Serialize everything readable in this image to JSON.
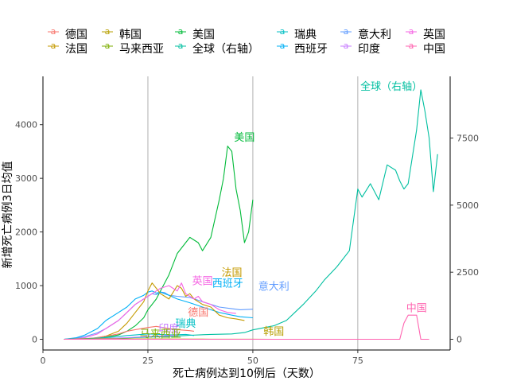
{
  "chart_data": {
    "type": "line",
    "xlabel": "死亡病例达到10例后（天数）",
    "ylabel": "新增死亡病例3日均值",
    "xlim": [
      0,
      97
    ],
    "ylim": [
      -200,
      4900
    ],
    "y2lim": [
      -400,
      9800
    ],
    "x_ticks": [
      0,
      25,
      50,
      75
    ],
    "y_ticks": [
      0,
      1000,
      2000,
      3000,
      4000
    ],
    "y2_ticks": [
      0,
      2500,
      5000,
      7500
    ],
    "vgrid": [
      25,
      50,
      75
    ],
    "legend_position": "top",
    "legend_glyph": "a",
    "legend": [
      {
        "name": "德国",
        "color": "#F8766D"
      },
      {
        "name": "法国",
        "color": "#C49A00"
      },
      {
        "name": "韩国",
        "color": "#B79F00"
      },
      {
        "name": "马来西亚",
        "color": "#7CAE00"
      },
      {
        "name": "美国",
        "color": "#00BA38"
      },
      {
        "name": "全球（右轴）",
        "color": "#00BFA0"
      },
      {
        "name": "瑞典",
        "color": "#00BFC4"
      },
      {
        "name": "西班牙",
        "color": "#00B0F6"
      },
      {
        "name": "意大利",
        "color": "#619CFF"
      },
      {
        "name": "印度",
        "color": "#C77CFF"
      },
      {
        "name": "英国",
        "color": "#F564E3"
      },
      {
        "name": "中国",
        "color": "#FF64B0"
      }
    ],
    "series": [
      {
        "name": "全球（右轴）",
        "color": "#00BFA0",
        "axis": "right",
        "label": "全球（右轴）",
        "x": [
          5,
          10,
          15,
          20,
          25,
          30,
          35,
          40,
          45,
          48,
          50,
          55,
          58,
          60,
          62,
          65,
          67,
          70,
          73,
          75,
          76,
          78,
          80,
          82,
          84,
          85,
          86,
          87,
          88,
          89,
          90,
          91,
          92,
          93,
          94
        ],
        "y": [
          0,
          10,
          30,
          50,
          80,
          100,
          150,
          180,
          200,
          250,
          350,
          500,
          700,
          1000,
          1300,
          1800,
          2200,
          2700,
          3300,
          5600,
          5300,
          5800,
          5200,
          6500,
          6300,
          5900,
          5600,
          5800,
          6800,
          7800,
          9300,
          8500,
          7500,
          5500,
          6900
        ]
      },
      {
        "name": "美国",
        "color": "#00BA38",
        "axis": "left",
        "label": "美国",
        "x": [
          5,
          8,
          10,
          13,
          15,
          18,
          20,
          22,
          24,
          25,
          27,
          28,
          30,
          32,
          35,
          37,
          38,
          40,
          42,
          43,
          44,
          45,
          46,
          47,
          48,
          49,
          50
        ],
        "y": [
          0,
          5,
          10,
          20,
          40,
          80,
          150,
          250,
          400,
          550,
          750,
          900,
          1200,
          1600,
          1900,
          1800,
          1650,
          1900,
          2600,
          3000,
          3600,
          3500,
          2800,
          2400,
          1800,
          2000,
          2600
        ]
      },
      {
        "name": "意大利",
        "color": "#619CFF",
        "axis": "left",
        "label": "意大利",
        "x": [
          5,
          8,
          10,
          13,
          15,
          18,
          20,
          22,
          24,
          25,
          26,
          27,
          28,
          29,
          30,
          32,
          35,
          38,
          40,
          42,
          45,
          47,
          50
        ],
        "y": [
          0,
          20,
          50,
          120,
          200,
          350,
          500,
          650,
          750,
          800,
          850,
          830,
          880,
          870,
          820,
          800,
          780,
          700,
          650,
          600,
          570,
          550,
          560
        ]
      },
      {
        "name": "西班牙",
        "color": "#00B0F6",
        "axis": "left",
        "label": "西班牙",
        "x": [
          5,
          8,
          10,
          13,
          15,
          18,
          20,
          22,
          24,
          25,
          26,
          27,
          28,
          30,
          32,
          35,
          38,
          40,
          42,
          45,
          47,
          50
        ],
        "y": [
          0,
          30,
          80,
          200,
          350,
          500,
          600,
          750,
          820,
          880,
          900,
          860,
          880,
          820,
          750,
          680,
          600,
          550,
          500,
          450,
          420,
          400
        ]
      },
      {
        "name": "法国",
        "color": "#C49A00",
        "axis": "left",
        "label": "法国",
        "x": [
          8,
          12,
          15,
          18,
          20,
          22,
          24,
          25,
          26,
          27,
          28,
          29,
          30,
          32,
          33,
          34,
          35,
          36,
          37,
          38,
          40,
          42,
          44,
          46,
          48
        ],
        "y": [
          0,
          20,
          60,
          150,
          300,
          500,
          700,
          900,
          1050,
          950,
          850,
          800,
          750,
          1000,
          950,
          800,
          850,
          750,
          700,
          650,
          600,
          450,
          400,
          380,
          350
        ]
      },
      {
        "name": "英国",
        "color": "#F564E3",
        "axis": "left",
        "label": "英国",
        "x": [
          6,
          8,
          10,
          13,
          15,
          18,
          20,
          22,
          25,
          27,
          28,
          30,
          32,
          33,
          34,
          35,
          36,
          37,
          38,
          40,
          42,
          44,
          46
        ],
        "y": [
          0,
          10,
          30,
          100,
          200,
          350,
          500,
          650,
          800,
          900,
          950,
          1000,
          900,
          1050,
          850,
          800,
          750,
          800,
          700,
          650,
          550,
          500,
          480
        ]
      },
      {
        "name": "德国",
        "color": "#F8766D",
        "axis": "left",
        "label": "德国",
        "x": [
          6,
          8,
          10,
          13,
          15,
          18,
          20,
          22,
          25,
          27,
          30,
          32,
          35,
          36
        ],
        "y": [
          0,
          5,
          10,
          30,
          60,
          100,
          150,
          180,
          220,
          240,
          200,
          180,
          160,
          150
        ]
      },
      {
        "name": "瑞典",
        "color": "#00BFC4",
        "axis": "left",
        "label": "瑞典",
        "x": [
          6,
          10,
          15,
          18,
          20,
          22,
          25,
          28,
          30,
          32,
          34,
          35,
          36
        ],
        "y": [
          0,
          10,
          30,
          50,
          70,
          80,
          100,
          90,
          80,
          85,
          90,
          80,
          70
        ]
      },
      {
        "name": "印度",
        "color": "#C77CFF",
        "axis": "left",
        "label": "印度",
        "x": [
          5,
          10,
          15,
          20,
          25,
          30,
          32
        ],
        "y": [
          0,
          5,
          15,
          30,
          50,
          70,
          80
        ]
      },
      {
        "name": "马来西亚",
        "color": "#7CAE00",
        "axis": "left",
        "label": "马来西亚",
        "x": [
          5,
          10,
          15,
          20,
          25,
          30
        ],
        "y": [
          0,
          3,
          5,
          5,
          3,
          2
        ]
      },
      {
        "name": "韩国",
        "color": "#B79F00",
        "axis": "left",
        "label": "韩国",
        "x": [
          5,
          10,
          15,
          20,
          25,
          30,
          35,
          40,
          45,
          50,
          55
        ],
        "y": [
          0,
          5,
          8,
          6,
          5,
          4,
          3,
          2,
          2,
          1,
          0
        ]
      },
      {
        "name": "中国",
        "color": "#FF64B0",
        "axis": "left",
        "label": "中国",
        "x": [
          5,
          10,
          15,
          20,
          25,
          30,
          40,
          50,
          60,
          70,
          80,
          85,
          86,
          87,
          88,
          89,
          90,
          92
        ],
        "y": [
          0,
          0,
          0,
          0,
          0,
          0,
          0,
          0,
          0,
          0,
          0,
          0,
          300,
          450,
          450,
          450,
          0,
          0
        ]
      }
    ],
    "labels": [
      {
        "series": "全球（右轴）",
        "x": 83,
        "y": 4650
      },
      {
        "series": "美国",
        "x": 48,
        "y": 3700
      },
      {
        "series": "法国",
        "x": 45,
        "y": 1180
      },
      {
        "series": "英国",
        "x": 38,
        "y": 1020
      },
      {
        "series": "西班牙",
        "x": 44,
        "y": 980
      },
      {
        "series": "意大利",
        "x": 55,
        "y": 920
      },
      {
        "series": "德国",
        "x": 37,
        "y": 440
      },
      {
        "series": "瑞典",
        "x": 34,
        "y": 230
      },
      {
        "series": "印度",
        "x": 30,
        "y": 130
      },
      {
        "series": "马来西亚",
        "x": 28,
        "y": 40
      },
      {
        "series": "韩国",
        "x": 55,
        "y": 80
      },
      {
        "series": "中国",
        "x": 89,
        "y": 520
      }
    ]
  }
}
